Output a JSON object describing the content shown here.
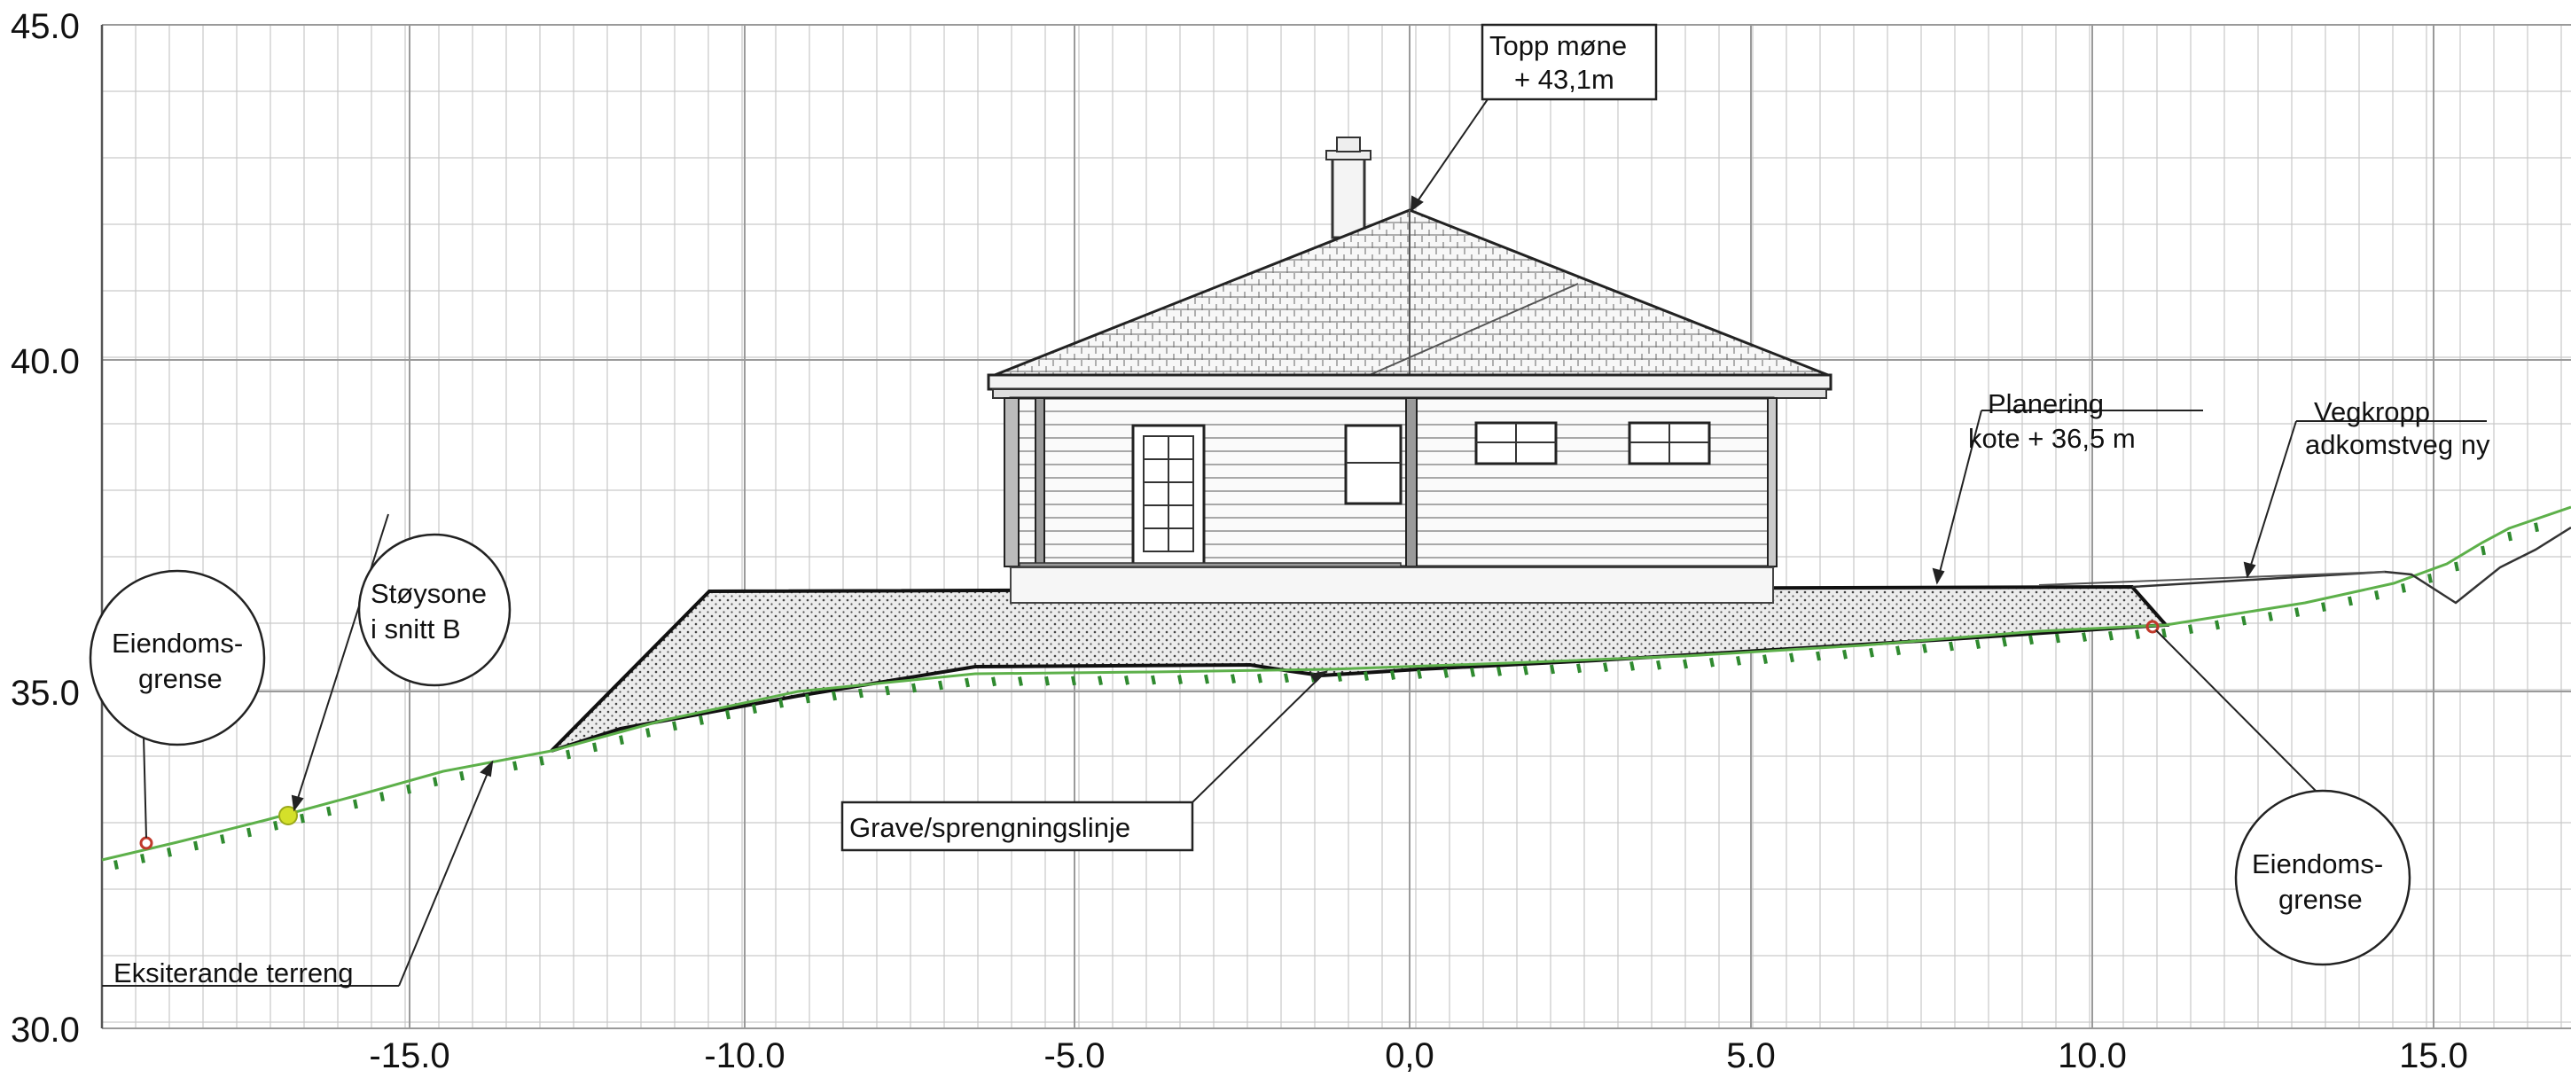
{
  "axes": {
    "y_ticks": [
      "30.0",
      "35.0",
      "40.0",
      "45.0"
    ],
    "x_ticks": [
      "-15.0",
      "-10.0",
      "-5.0",
      "0,0",
      "5.0",
      "10.0",
      "15.0"
    ]
  },
  "annotations": {
    "topp_mone": [
      "Topp møne",
      "+ 43,1m"
    ],
    "planering": [
      "Planering",
      "kote + 36,5 m"
    ],
    "vegkropp": [
      "Vegkropp",
      "adkomstveg ny"
    ],
    "stoysone": [
      "Støysone",
      "i snitt B"
    ],
    "eiendom_left": [
      "Eiendoms-",
      "grense"
    ],
    "eiendom_right": [
      "Eiendoms-",
      "grense"
    ],
    "grave": "Grave/sprengningslinje",
    "terreng": "Eksiterande terreng"
  },
  "colors": {
    "terrain_line": "#5db04a",
    "terrain_hatch": "#2f8a2f",
    "noise_marker": "#d4e02a",
    "boundary_marker": "#c0392b",
    "grid": "#c9c9c9",
    "line": "#1a1a1a"
  }
}
